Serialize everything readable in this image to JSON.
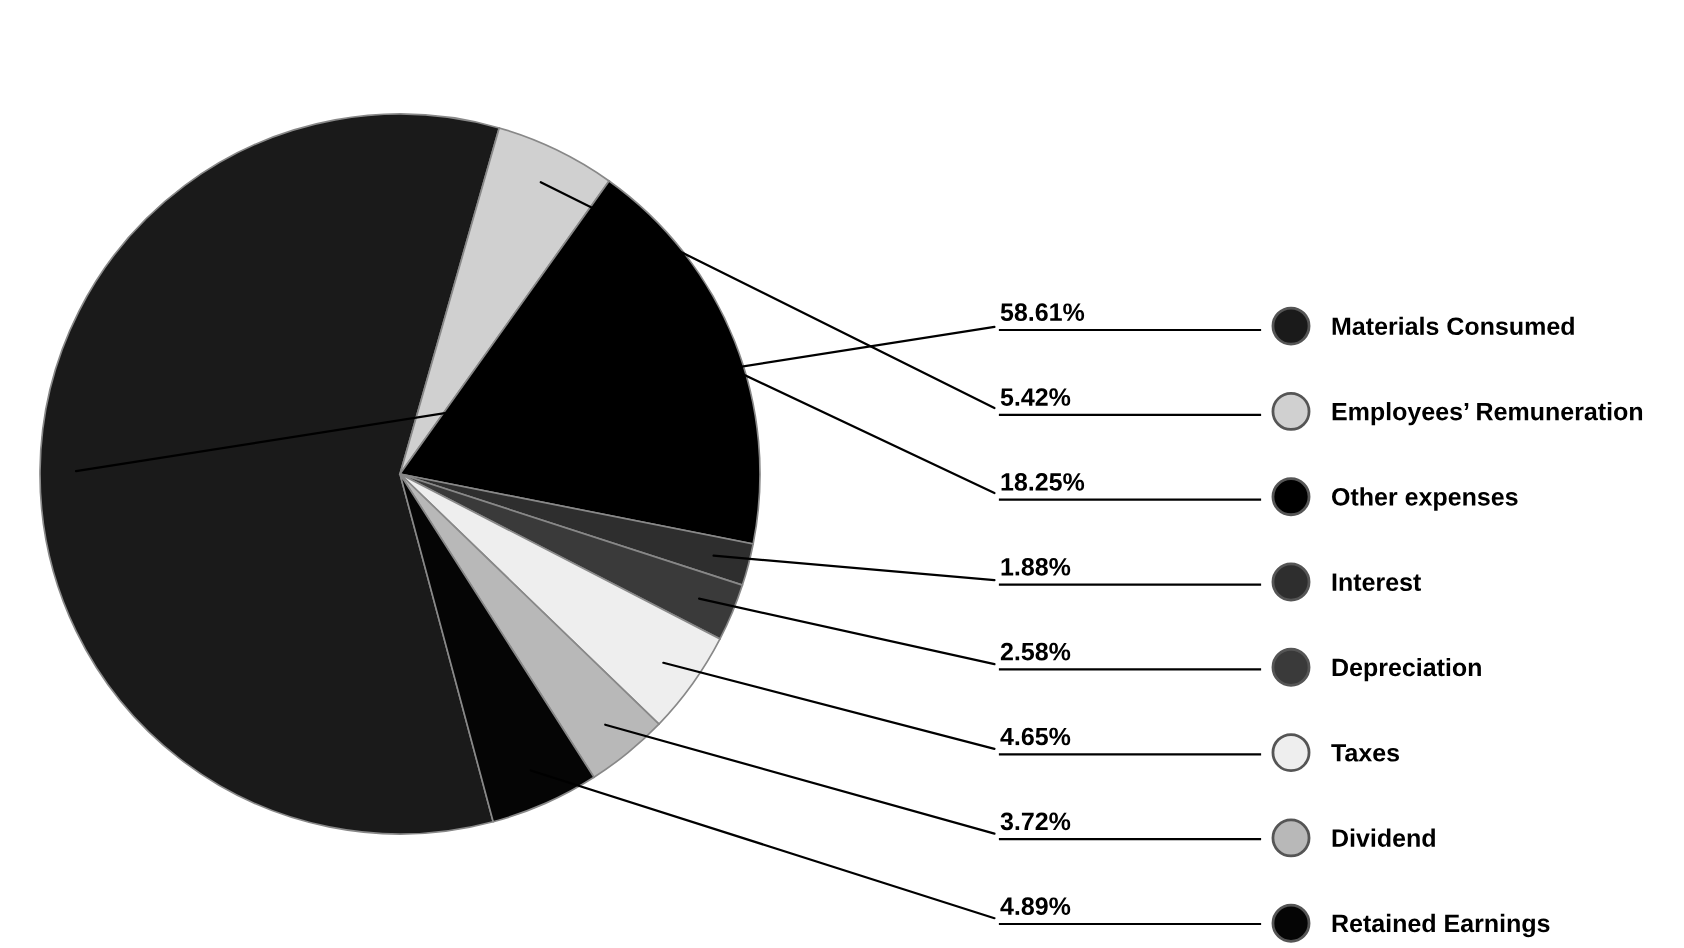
{
  "chart_data": {
    "type": "pie",
    "categories": [
      "Materials Consumed",
      "Employees’ Remuneration",
      "Other expenses",
      "Interest",
      "Depreciation",
      "Taxes",
      "Dividend",
      "Retained Earnings"
    ],
    "values": [
      58.61,
      5.42,
      18.25,
      1.88,
      2.58,
      4.65,
      3.72,
      4.89
    ],
    "value_labels": [
      "58.61%",
      "5.42%",
      "18.25%",
      "1.88%",
      "2.58%",
      "4.65%",
      "3.72%",
      "4.89%"
    ],
    "colors": [
      "#1a1a1a",
      "#d0d0d0",
      "#000000",
      "#2e2e2e",
      "#3a3a3a",
      "#eeeeee",
      "#b8b8b8",
      "#050505"
    ],
    "legend": "right"
  }
}
